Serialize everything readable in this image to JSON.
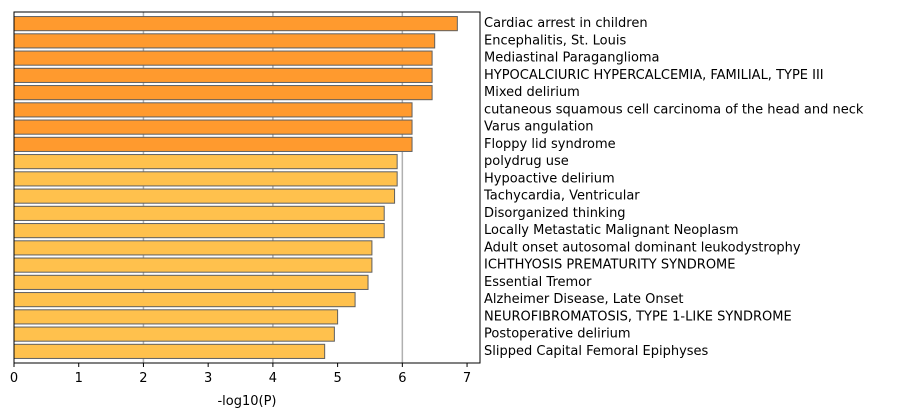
{
  "chart_data": {
    "type": "bar",
    "orientation": "horizontal",
    "categories": [
      "Cardiac arrest in children",
      "Encephalitis, St. Louis",
      "Mediastinal Paraganglioma",
      "HYPOCALCIURIC HYPERCALCEMIA, FAMILIAL, TYPE III",
      "Mixed delirium",
      "cutaneous squamous cell carcinoma of the head and neck",
      "Varus angulation",
      "Floppy lid syndrome",
      "polydrug use",
      "Hypoactive delirium",
      "Tachycardia, Ventricular",
      "Disorganized thinking",
      "Locally Metastatic Malignant Neoplasm",
      "Adult onset autosomal dominant leukodystrophy",
      "ICHTHYOSIS PREMATURITY SYNDROME",
      "Essential Tremor",
      "Alzheimer Disease, Late Onset",
      "NEUROFIBROMATOSIS, TYPE 1-LIKE SYNDROME",
      "Postoperative delirium",
      "Slipped Capital Femoral Epiphyses"
    ],
    "values": [
      6.85,
      6.5,
      6.46,
      6.46,
      6.46,
      6.15,
      6.15,
      6.15,
      5.92,
      5.92,
      5.88,
      5.72,
      5.72,
      5.53,
      5.53,
      5.47,
      5.27,
      5.0,
      4.95,
      4.8
    ],
    "bar_colors": [
      "#ff9a2e",
      "#ff9a2e",
      "#ff9a2e",
      "#ff9a2e",
      "#ff9a2e",
      "#ff9a2e",
      "#ff9a2e",
      "#ff9a2e",
      "#ffc14d",
      "#ffc14d",
      "#ffc14d",
      "#ffc14d",
      "#ffc14d",
      "#ffc14d",
      "#ffc14d",
      "#ffc14d",
      "#ffc14d",
      "#ffc14d",
      "#ffc14d",
      "#ffc14d"
    ],
    "edge_color": "#5f5f5f",
    "xlabel": "-log10(P)",
    "ylabel": "",
    "title": "",
    "xlim": [
      0,
      7.2
    ],
    "xticks": [
      0,
      1,
      2,
      3,
      4,
      5,
      6,
      7
    ],
    "grid": "vertical gridlines at x = 2, 4, 6",
    "grid_lines": [
      2,
      4,
      6
    ],
    "grid_color": "#b0b0b0",
    "category_labels_side": "right"
  }
}
